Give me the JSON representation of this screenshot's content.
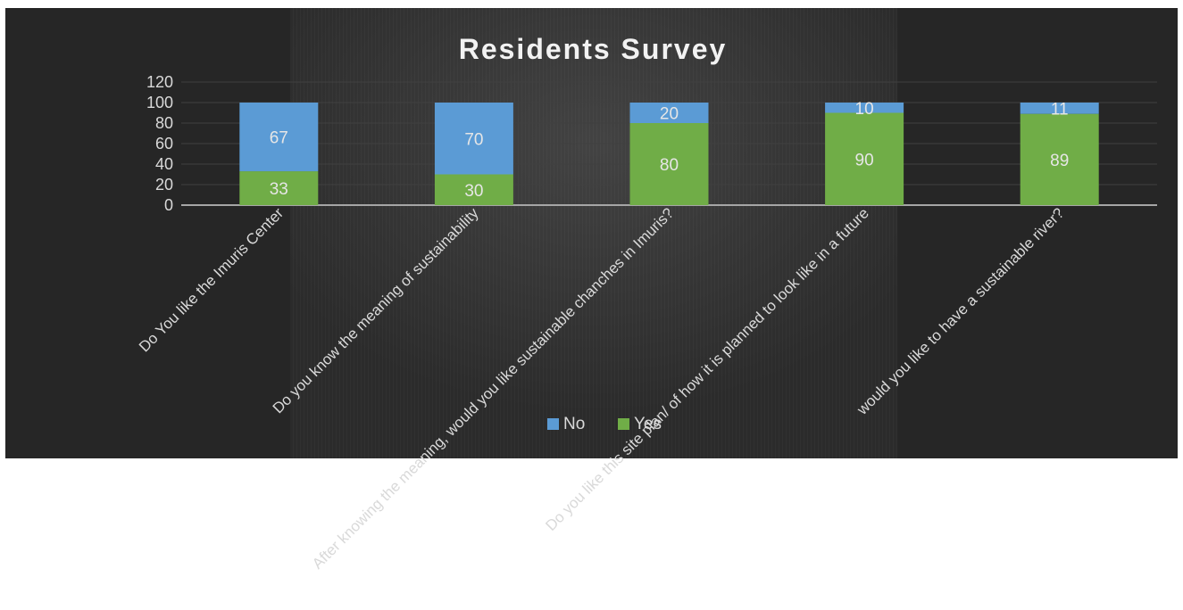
{
  "chart_data": {
    "type": "bar",
    "stacked": true,
    "title": "Residents Survey",
    "xlabel": "",
    "ylabel": "",
    "ylim": [
      0,
      120
    ],
    "yticks": [
      0,
      20,
      40,
      60,
      80,
      100,
      120
    ],
    "grid": true,
    "legend_position": "bottom",
    "categories": [
      "Do You like the Imuris Center",
      "Do you know the meaning of sustainability",
      "After knowing the meaning, would you like sustainable chanches in Imuris?",
      "Do you like this site plan/ of how it is planned to look like in a future",
      "would you like to have a sustainable river?"
    ],
    "series": [
      {
        "name": "Yes",
        "color": "#70ad47",
        "values": [
          33,
          30,
          80,
          90,
          89
        ]
      },
      {
        "name": "No",
        "color": "#5b9bd5",
        "values": [
          67,
          70,
          20,
          10,
          11
        ]
      }
    ],
    "legend_order": [
      "No",
      "Yes"
    ]
  },
  "colors": {
    "background": "#2b2b2b",
    "text": "#d9d9d9",
    "title": "#f2f2f2",
    "gridline": "#404040",
    "axis": "#a6a6a6"
  }
}
